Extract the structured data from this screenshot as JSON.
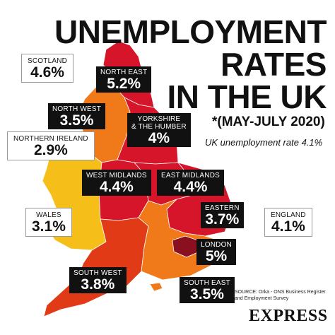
{
  "title": {
    "line1": "UNEMPLOYMENT",
    "line2": "RATES",
    "line3": "IN THE UK"
  },
  "period": "*(MAY-JULY 2020)",
  "uk_rate_note": "UK unemployment rate 4.1%",
  "colors": {
    "level_high": "#d6152a",
    "level_mid_high": "#e03a17",
    "level_mid": "#f07a1a",
    "level_low": "#f5be18",
    "london": "#8a1020",
    "box_dark": "#111111",
    "box_light": "#ffffff"
  },
  "regions": {
    "scotland": {
      "name": "SCOTLAND",
      "value": "4.6%"
    },
    "north_east": {
      "name": "NORTH EAST",
      "value": "5.2%"
    },
    "north_west": {
      "name": "NORTH WEST",
      "value": "3.5%"
    },
    "yorkshire": {
      "name1": "YORKSHIRE",
      "name2": "& THE HUMBER",
      "value": "4%"
    },
    "northern_ireland": {
      "name": "NORTHERN IRELAND",
      "value": "2.9%"
    },
    "west_midlands": {
      "name": "WEST MIDLANDS",
      "value": "4.4%"
    },
    "east_midlands": {
      "name": "EAST MIDLANDS",
      "value": "4.4%"
    },
    "eastern": {
      "name": "EASTERN",
      "value": "3.7%"
    },
    "wales": {
      "name": "WALES",
      "value": "3.1%"
    },
    "england": {
      "name": "ENGLAND",
      "value": "4.1%"
    },
    "london": {
      "name": "LONDON",
      "value": "5%"
    },
    "south_west": {
      "name": "SOUTH WEST",
      "value": "3.8%"
    },
    "south_east": {
      "name": "SOUTH EAST",
      "value": "3.5%"
    }
  },
  "source": "SOURCE: Orka - ONS Business Register and Employment Survey",
  "brand": "EXPRESS"
}
